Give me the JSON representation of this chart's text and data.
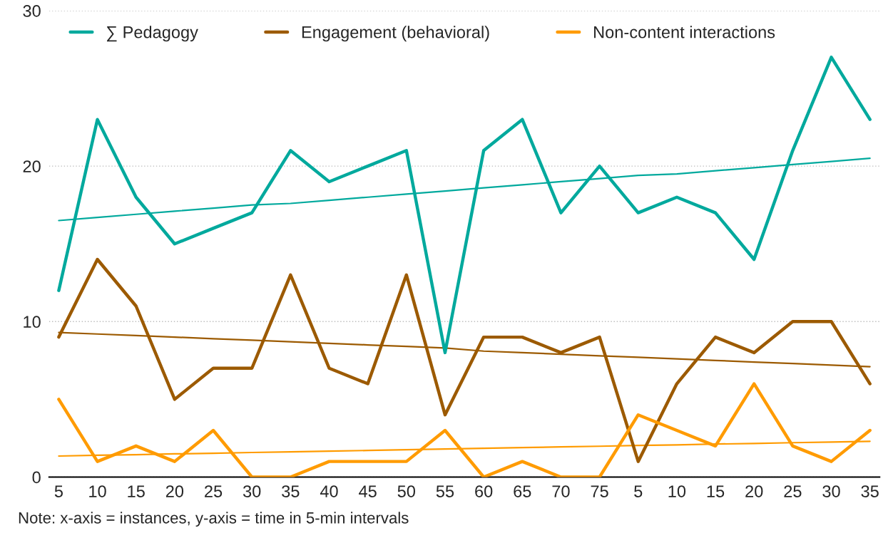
{
  "chart_data": {
    "type": "line",
    "categories": [
      "5",
      "10",
      "15",
      "20",
      "25",
      "30",
      "35",
      "40",
      "45",
      "50",
      "55",
      "60",
      "65",
      "70",
      "75",
      "5",
      "10",
      "15",
      "20",
      "25",
      "30",
      "35"
    ],
    "series": [
      {
        "name": "∑ Pedagogy",
        "color": "#00a99d",
        "values": [
          12,
          23,
          18,
          15,
          16,
          17,
          21,
          19,
          20,
          21,
          8,
          21,
          23,
          17,
          20,
          17,
          18,
          17,
          14,
          21,
          27,
          23
        ]
      },
      {
        "name": "Engagement (behavioral)",
        "color": "#9c5a00",
        "values": [
          9,
          14,
          11,
          5,
          7,
          7,
          13,
          7,
          6,
          13,
          4,
          9,
          9,
          8,
          9,
          1,
          6,
          9,
          8,
          10,
          10,
          6
        ]
      },
      {
        "name": "Non-content interactions",
        "color": "#ff9b00",
        "values": [
          5,
          1,
          2,
          1,
          3,
          0,
          0,
          1,
          1,
          1,
          3,
          0,
          1,
          0,
          0,
          4,
          3,
          2,
          6,
          2,
          1,
          3
        ]
      },
      {
        "color": "#00a99d",
        "values": [
          16.5,
          16.7,
          16.9,
          17.1,
          17.3,
          17.5,
          17.6,
          17.8,
          18.0,
          18.2,
          18.4,
          18.6,
          18.8,
          19.0,
          19.2,
          19.4,
          19.5,
          19.7,
          19.9,
          20.1,
          20.3,
          20.5
        ]
      },
      {
        "color": "#9c5a00",
        "values": [
          9.3,
          9.2,
          9.1,
          9.0,
          8.9,
          8.8,
          8.7,
          8.6,
          8.5,
          8.4,
          8.3,
          8.1,
          8.0,
          7.9,
          7.8,
          7.7,
          7.6,
          7.5,
          7.4,
          7.3,
          7.2,
          7.1
        ]
      },
      {
        "color": "#ff9b00",
        "values": [
          1.35,
          1.4,
          1.44,
          1.49,
          1.53,
          1.58,
          1.62,
          1.67,
          1.71,
          1.76,
          1.8,
          1.85,
          1.89,
          1.94,
          1.98,
          2.03,
          2.07,
          2.12,
          2.16,
          2.21,
          2.25,
          2.3
        ]
      }
    ],
    "ylim": [
      0,
      30
    ],
    "yticks": [
      0,
      10,
      20,
      30
    ],
    "grid": "y",
    "legend": "top",
    "marker": "none",
    "line_style": "solid",
    "annotations": [
      "Note: x-axis = instances, y-axis = time in 5-min intervals"
    ]
  }
}
